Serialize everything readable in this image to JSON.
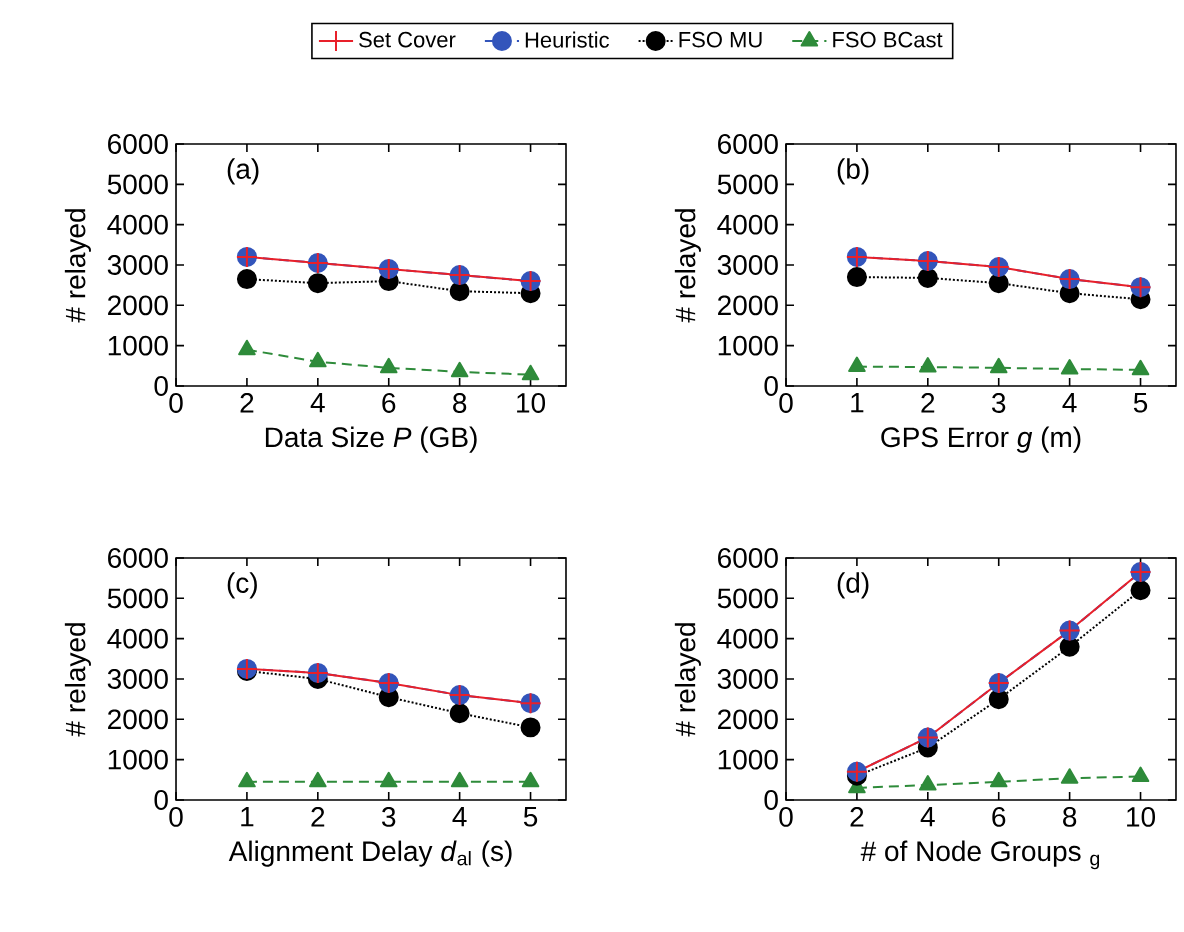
{
  "chart_data": [
    {
      "type": "line",
      "xlabel": "Data Size *P* (GB)",
      "ylabel": "# relayed",
      "annotations": [
        "(a)"
      ],
      "x": [
        2,
        4,
        6,
        8,
        10
      ],
      "xlim": [
        0,
        11
      ],
      "xticks": [
        0,
        2,
        4,
        6,
        8,
        10
      ],
      "ylim": [
        0,
        6000
      ],
      "yticks": [
        0,
        1000,
        2000,
        3000,
        4000,
        5000,
        6000
      ],
      "legend": "top",
      "series": [
        {
          "name": "Set Cover",
          "color": "#e8202a",
          "marker": "cross",
          "line_style": "solid",
          "values": [
            3200,
            3050,
            2900,
            2750,
            2600
          ]
        },
        {
          "name": "Heuristic",
          "color": "#3355bb",
          "marker": "circle",
          "line_style": "dashed",
          "values": [
            3200,
            3050,
            2900,
            2750,
            2600
          ]
        },
        {
          "name": "FSO MU",
          "color": "#000000",
          "marker": "circle",
          "line_style": "dotted",
          "values": [
            2650,
            2550,
            2600,
            2350,
            2300
          ]
        },
        {
          "name": "FSO BCast",
          "color": "#2e8b3a",
          "marker": "triangle",
          "line_style": "dashed",
          "values": [
            900,
            600,
            450,
            350,
            280
          ]
        }
      ]
    },
    {
      "type": "line",
      "xlabel": "GPS Error *g* (m)",
      "ylabel": "# relayed",
      "annotations": [
        "(b)"
      ],
      "x": [
        1,
        2,
        3,
        4,
        5
      ],
      "xlim": [
        0,
        5.5
      ],
      "xticks": [
        0,
        1,
        2,
        3,
        4,
        5
      ],
      "ylim": [
        0,
        6000
      ],
      "yticks": [
        0,
        1000,
        2000,
        3000,
        4000,
        5000,
        6000
      ],
      "series": [
        {
          "color": "#e8202a",
          "marker": "cross",
          "line_style": "solid",
          "values": [
            3200,
            3100,
            2950,
            2650,
            2450
          ]
        },
        {
          "color": "#3355bb",
          "marker": "circle",
          "line_style": "dashed",
          "values": [
            3200,
            3100,
            2950,
            2650,
            2450
          ]
        },
        {
          "color": "#000000",
          "marker": "circle",
          "line_style": "dotted",
          "values": [
            2700,
            2680,
            2550,
            2300,
            2150
          ]
        },
        {
          "color": "#2e8b3a",
          "marker": "triangle",
          "line_style": "dashed",
          "values": [
            480,
            470,
            450,
            420,
            400
          ]
        }
      ]
    },
    {
      "type": "line",
      "xlabel": "Alignment Delay *d*$_{al}$ (s)",
      "ylabel": "# relayed",
      "annotations": [
        "(c)"
      ],
      "x": [
        1,
        2,
        3,
        4,
        5
      ],
      "xlim": [
        0,
        5.5
      ],
      "xticks": [
        0,
        1,
        2,
        3,
        4,
        5
      ],
      "ylim": [
        0,
        6000
      ],
      "yticks": [
        0,
        1000,
        2000,
        3000,
        4000,
        5000,
        6000
      ],
      "series": [
        {
          "color": "#e8202a",
          "marker": "cross",
          "line_style": "solid",
          "values": [
            3250,
            3150,
            2900,
            2600,
            2400
          ]
        },
        {
          "color": "#3355bb",
          "marker": "circle",
          "line_style": "dashed",
          "values": [
            3250,
            3150,
            2900,
            2600,
            2400
          ]
        },
        {
          "color": "#000000",
          "marker": "circle",
          "line_style": "dotted",
          "values": [
            3200,
            3000,
            2550,
            2150,
            1800
          ]
        },
        {
          "color": "#2e8b3a",
          "marker": "triangle",
          "line_style": "dashed",
          "values": [
            450,
            450,
            450,
            450,
            450
          ]
        }
      ]
    },
    {
      "type": "line",
      "xlabel": "# of Node Groups $_{g}$",
      "ylabel": "# relayed",
      "annotations": [
        "(d)"
      ],
      "x": [
        2,
        4,
        6,
        8,
        10
      ],
      "xlim": [
        0,
        11
      ],
      "xticks": [
        0,
        2,
        4,
        6,
        8,
        10
      ],
      "ylim": [
        0,
        6000
      ],
      "yticks": [
        0,
        1000,
        2000,
        3000,
        4000,
        5000,
        6000
      ],
      "series": [
        {
          "color": "#e8202a",
          "marker": "cross",
          "line_style": "solid",
          "values": [
            700,
            1550,
            2900,
            4200,
            5650
          ]
        },
        {
          "color": "#3355bb",
          "marker": "circle",
          "line_style": "dashed",
          "values": [
            700,
            1550,
            2900,
            4200,
            5650
          ]
        },
        {
          "color": "#000000",
          "marker": "circle",
          "line_style": "dotted",
          "values": [
            600,
            1300,
            2500,
            3800,
            5200
          ]
        },
        {
          "color": "#2e8b3a",
          "marker": "triangle",
          "line_style": "dashed",
          "values": [
            300,
            370,
            450,
            540,
            580
          ]
        }
      ]
    }
  ]
}
